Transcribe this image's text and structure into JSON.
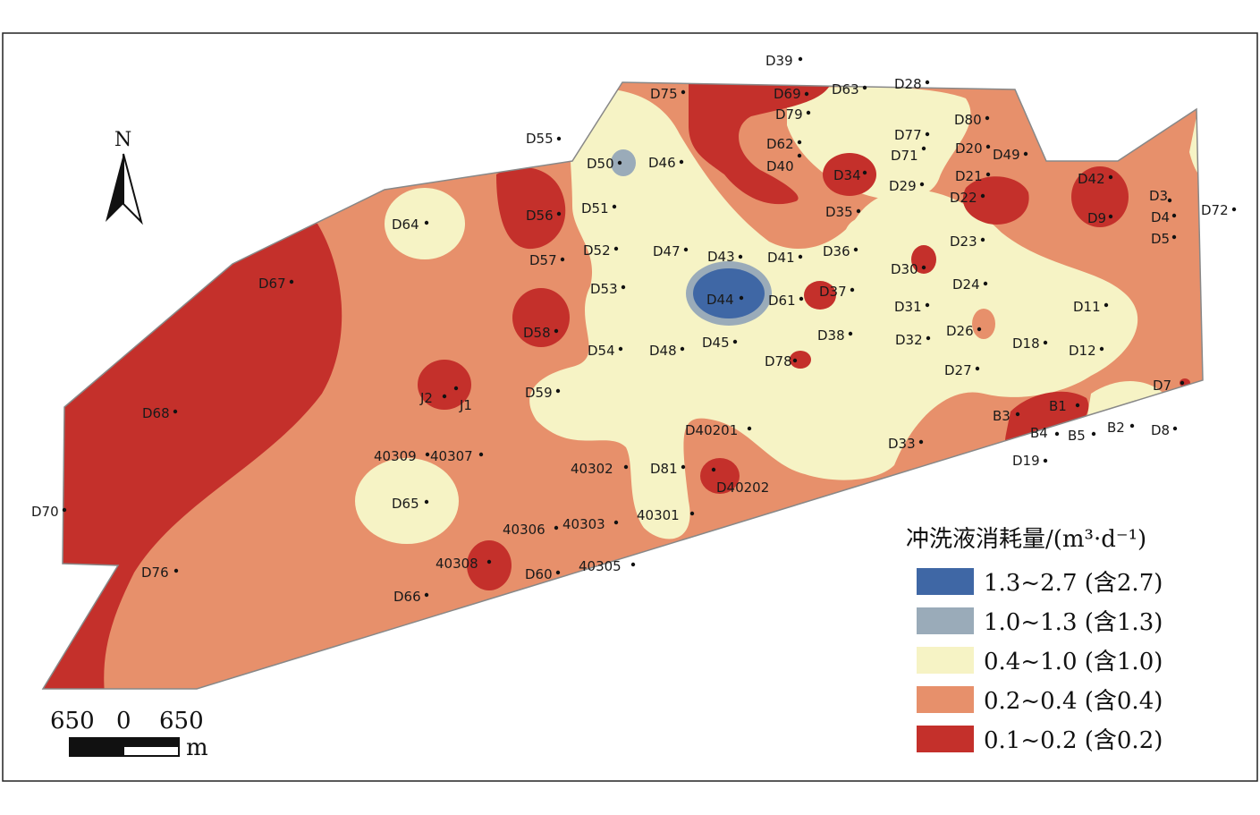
{
  "legend": {
    "title": "冲洗液消耗量/(m³·d⁻¹)",
    "items": [
      {
        "label": "1.3~2.7 (含2.7)",
        "color": "#3f67a5"
      },
      {
        "label": "1.0~1.3 (含1.3)",
        "color": "#9aabb9"
      },
      {
        "label": "0.4~1.0 (含1.0)",
        "color": "#f6f3c5"
      },
      {
        "label": "0.2~0.4 (含0.4)",
        "color": "#e7906b"
      },
      {
        "label": "0.1~0.2 (含0.2)",
        "color": "#c4302b"
      }
    ]
  },
  "north_arrow": {
    "label": "N",
    "icon": "north-arrow-icon"
  },
  "scale_bar": {
    "left": "650",
    "mid": "0",
    "right": "650",
    "unit": "m"
  },
  "wells": [
    {
      "name": "D39"
    },
    {
      "name": "D75"
    },
    {
      "name": "D69"
    },
    {
      "name": "D63"
    },
    {
      "name": "D28"
    },
    {
      "name": "D79"
    },
    {
      "name": "D80"
    },
    {
      "name": "D55"
    },
    {
      "name": "D62"
    },
    {
      "name": "D77"
    },
    {
      "name": "D71"
    },
    {
      "name": "D20"
    },
    {
      "name": "D49"
    },
    {
      "name": "D50"
    },
    {
      "name": "D46"
    },
    {
      "name": "D40"
    },
    {
      "name": "D34"
    },
    {
      "name": "D21"
    },
    {
      "name": "D29"
    },
    {
      "name": "D42"
    },
    {
      "name": "D22"
    },
    {
      "name": "D3"
    },
    {
      "name": "D72"
    },
    {
      "name": "D64"
    },
    {
      "name": "D56"
    },
    {
      "name": "D51"
    },
    {
      "name": "D35"
    },
    {
      "name": "D9"
    },
    {
      "name": "D4"
    },
    {
      "name": "D5"
    },
    {
      "name": "D36"
    },
    {
      "name": "D23"
    },
    {
      "name": "D52"
    },
    {
      "name": "D47"
    },
    {
      "name": "D43"
    },
    {
      "name": "D41"
    },
    {
      "name": "D57"
    },
    {
      "name": "D30"
    },
    {
      "name": "D67"
    },
    {
      "name": "D53"
    },
    {
      "name": "D24"
    },
    {
      "name": "D37"
    },
    {
      "name": "D44"
    },
    {
      "name": "D61"
    },
    {
      "name": "D31"
    },
    {
      "name": "D11"
    },
    {
      "name": "D58"
    },
    {
      "name": "D26"
    },
    {
      "name": "D38"
    },
    {
      "name": "D32"
    },
    {
      "name": "D45"
    },
    {
      "name": "D18"
    },
    {
      "name": "D54"
    },
    {
      "name": "D48"
    },
    {
      "name": "D12"
    },
    {
      "name": "D78"
    },
    {
      "name": "D27"
    },
    {
      "name": "D7"
    },
    {
      "name": "J2"
    },
    {
      "name": "J1"
    },
    {
      "name": "D59"
    },
    {
      "name": "B1"
    },
    {
      "name": "D68"
    },
    {
      "name": "B3"
    },
    {
      "name": "B2"
    },
    {
      "name": "D8"
    },
    {
      "name": "D40201"
    },
    {
      "name": "B4"
    },
    {
      "name": "B5"
    },
    {
      "name": "D33"
    },
    {
      "name": "40309"
    },
    {
      "name": "40307"
    },
    {
      "name": "D19"
    },
    {
      "name": "40302"
    },
    {
      "name": "D81"
    },
    {
      "name": "D40202"
    },
    {
      "name": "D65"
    },
    {
      "name": "D70"
    },
    {
      "name": "40301"
    },
    {
      "name": "40306"
    },
    {
      "name": "40303"
    },
    {
      "name": "40308"
    },
    {
      "name": "D76"
    },
    {
      "name": "D60"
    },
    {
      "name": "40305"
    },
    {
      "name": "D66"
    }
  ]
}
